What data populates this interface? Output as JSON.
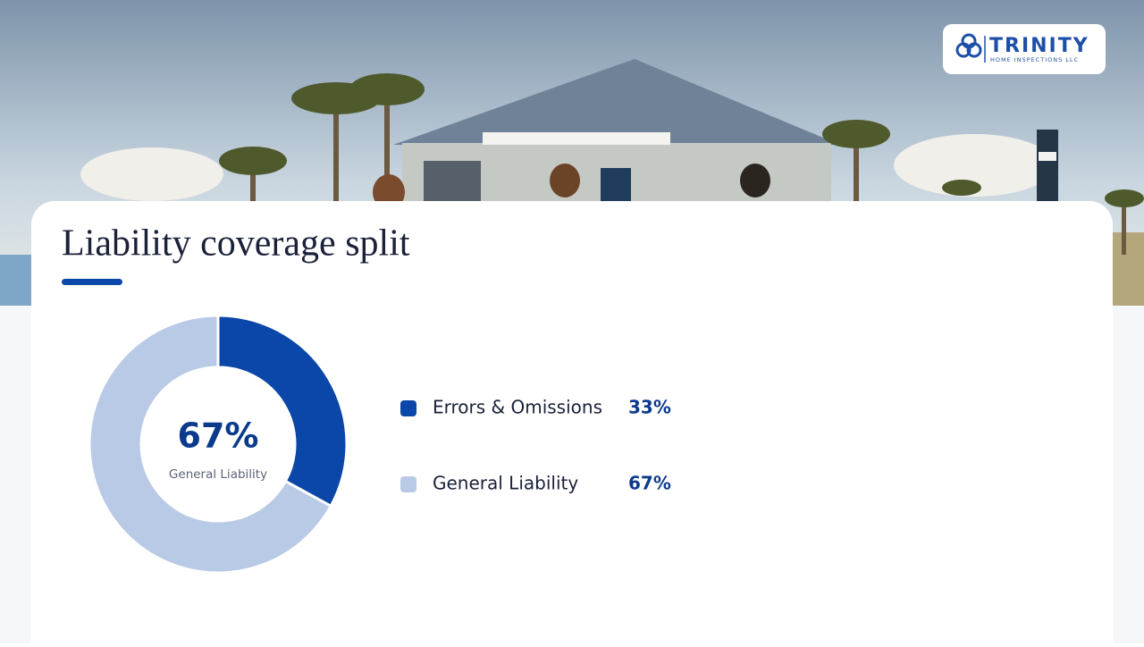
{
  "logo": {
    "name": "TRINITY",
    "tagline": "HOME INSPECTIONS LLC"
  },
  "chart_data": {
    "type": "donut",
    "title": "Liability coverage split",
    "categories": [
      "Errors & Omissions",
      "General Liability"
    ],
    "values": [
      33,
      67
    ],
    "value_labels": [
      "33%",
      "67%"
    ],
    "colors": [
      "#0b47a8",
      "#b8cae6"
    ]
  }
}
